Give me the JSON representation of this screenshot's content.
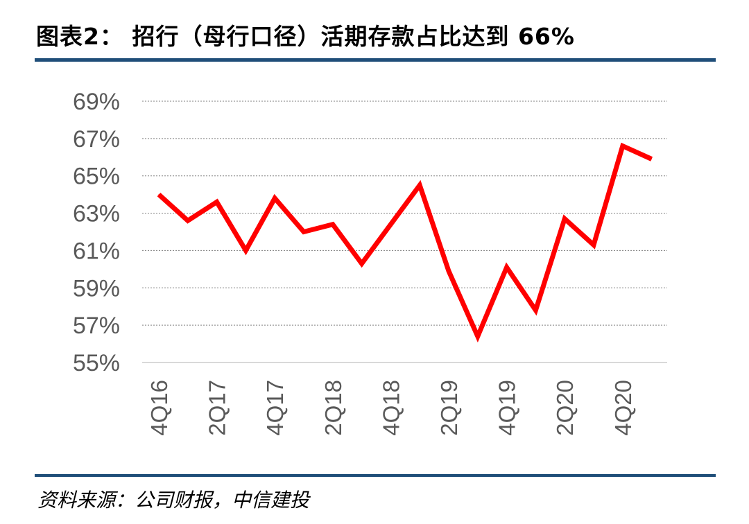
{
  "header": {
    "title": "图表2： 招行（母行口径）活期存款占比达到 66%"
  },
  "footer": {
    "source": "资料来源：公司财报，中信建投"
  },
  "chart_data": {
    "type": "line",
    "title": "图表2： 招行（母行口径）活期存款占比达到 66%",
    "xlabel": "",
    "ylabel": "",
    "ylim": [
      55,
      69
    ],
    "yticks": [
      55,
      57,
      59,
      61,
      63,
      65,
      67,
      69
    ],
    "ytick_labels": [
      "55%",
      "57%",
      "59%",
      "61%",
      "63%",
      "65%",
      "67%",
      "69%"
    ],
    "x": [
      "4Q16",
      "1Q17",
      "2Q17",
      "3Q17",
      "4Q17",
      "1Q18",
      "2Q18",
      "3Q18",
      "4Q18",
      "1Q19",
      "2Q19",
      "3Q19",
      "4Q19",
      "1Q20",
      "2Q20",
      "3Q20",
      "4Q20",
      "1Q21"
    ],
    "xtick_labels": [
      "4Q16",
      "2Q17",
      "4Q17",
      "2Q18",
      "4Q18",
      "2Q19",
      "4Q19",
      "2Q20",
      "4Q20"
    ],
    "series": [
      {
        "name": "",
        "color": "#ff0000",
        "values": [
          64.0,
          62.6,
          63.6,
          61.0,
          63.8,
          62.0,
          62.4,
          60.3,
          62.4,
          64.5,
          59.9,
          56.4,
          60.1,
          57.8,
          62.7,
          61.3,
          66.6,
          65.9
        ]
      }
    ],
    "grid": true,
    "legend": "none"
  }
}
